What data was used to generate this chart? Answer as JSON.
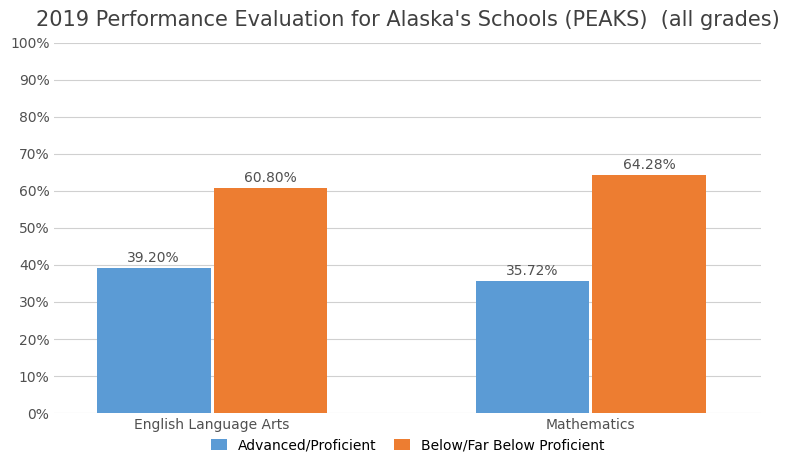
{
  "title": "2019 Performance Evaluation for Alaska's Schools (PEAKS)  (all grades)",
  "categories": [
    "English Language Arts",
    "Mathematics"
  ],
  "series": [
    {
      "name": "Advanced/Proficient",
      "values": [
        39.2,
        35.72
      ],
      "color": "#5B9BD5"
    },
    {
      "name": "Below/Far Below Proficient",
      "values": [
        60.8,
        64.28
      ],
      "color": "#ED7D31"
    }
  ],
  "ylim": [
    0,
    100
  ],
  "yticks": [
    0,
    10,
    20,
    30,
    40,
    50,
    60,
    70,
    80,
    90,
    100
  ],
  "bar_width": 0.18,
  "group_centers": [
    0.25,
    0.85
  ],
  "title_fontsize": 15,
  "label_fontsize": 10,
  "tick_fontsize": 10,
  "legend_fontsize": 10,
  "background_color": "#ffffff",
  "grid_color": "#d0d0d0"
}
